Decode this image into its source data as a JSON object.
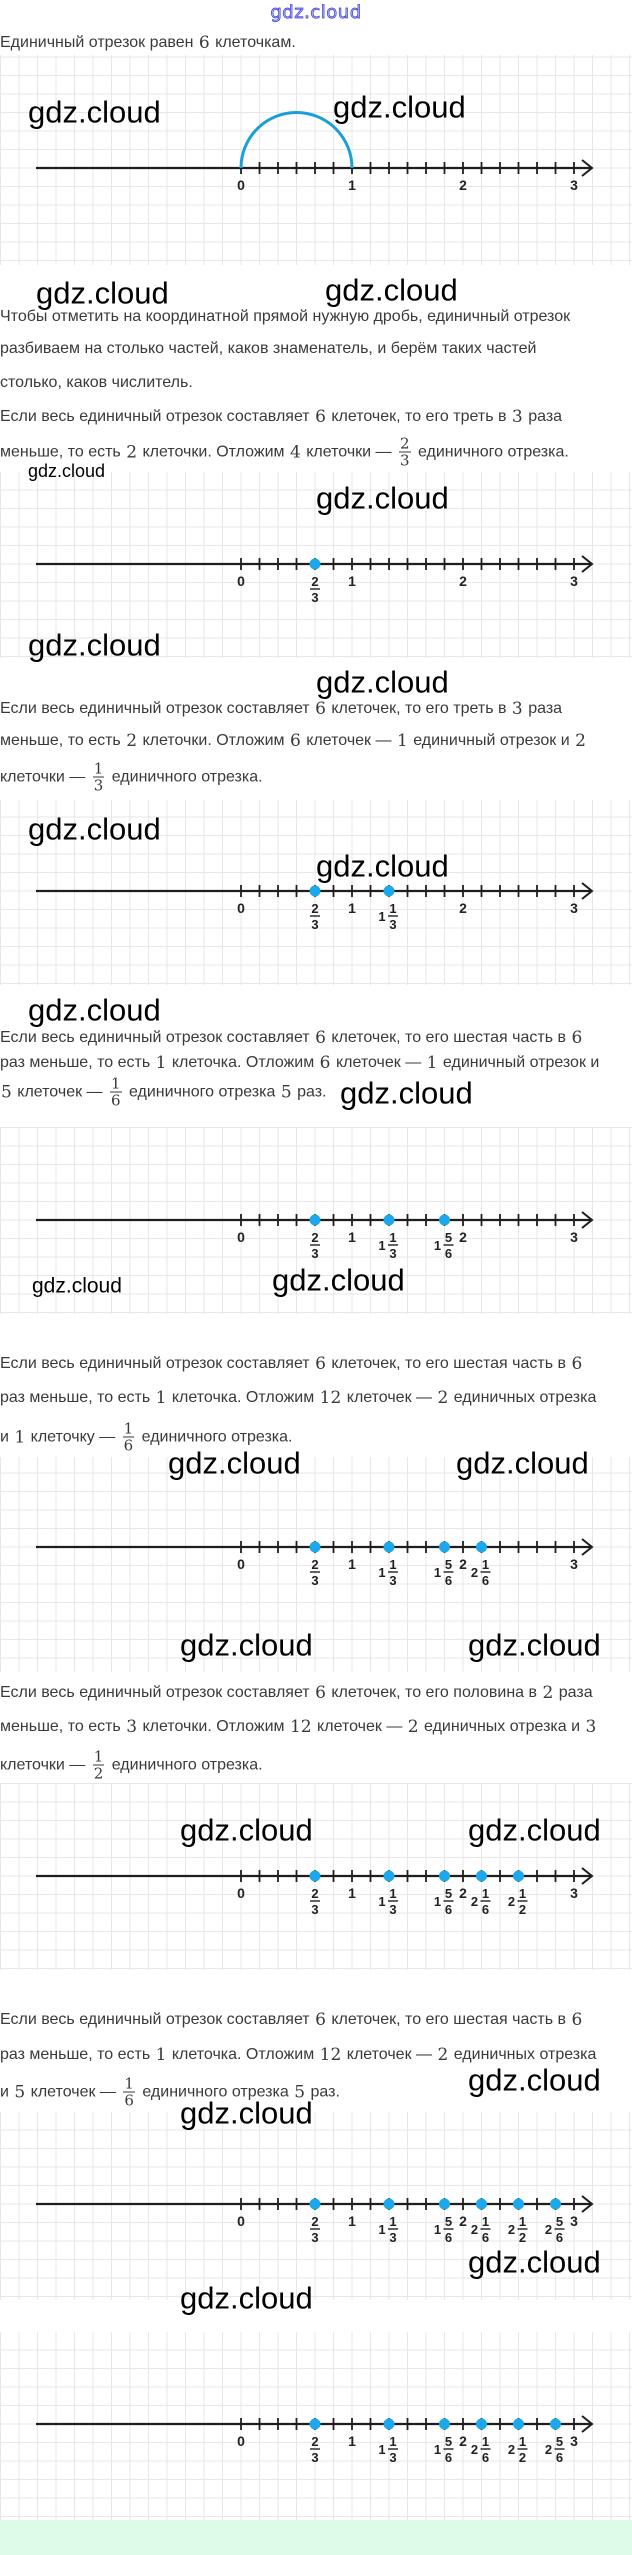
{
  "header": {
    "watermark": "gdz.cloud"
  },
  "watermark": "gdz.cloud",
  "paragraphs": [
    {
      "lines": [
        [
          {
            "t": "Единичный отрезок равен "
          },
          {
            "m": "6"
          },
          {
            "t": " клеточкам."
          }
        ]
      ]
    },
    {
      "lines": [
        [
          {
            "t": "Чтобы отметить на координатной прямой нужную дробь, единичный отрезок"
          }
        ],
        [
          {
            "t": "разбиваем на столько частей, каков знаменатель, и берём таких частей"
          }
        ],
        [
          {
            "t": "столько, каков числитель."
          }
        ],
        [
          {
            "t": "Если весь единичный отрезок составляет "
          },
          {
            "m": "6"
          },
          {
            "t": " клеточек, то его треть в "
          },
          {
            "m": "3"
          },
          {
            "t": " раза"
          }
        ],
        [
          {
            "t": "меньше, то есть "
          },
          {
            "m": "2"
          },
          {
            "t": " клеточки. Отложим "
          },
          {
            "m": "4"
          },
          {
            "t": " клеточки — "
          },
          {
            "f": [
              "2",
              "3"
            ]
          },
          {
            "t": " единичного отрезка."
          }
        ]
      ]
    },
    {
      "lines": [
        [
          {
            "t": "Если весь единичный отрезок составляет "
          },
          {
            "m": "6"
          },
          {
            "t": " клеточек, то его треть в "
          },
          {
            "m": "3"
          },
          {
            "t": " раза"
          }
        ],
        [
          {
            "t": "меньше, то есть "
          },
          {
            "m": "2"
          },
          {
            "t": " клеточки. Отложим "
          },
          {
            "m": "6"
          },
          {
            "t": " клеточек — "
          },
          {
            "m": "1"
          },
          {
            "t": " единичный отрезок и "
          },
          {
            "m": "2"
          }
        ],
        [
          {
            "t": "клеточки — "
          },
          {
            "f": [
              "1",
              "3"
            ]
          },
          {
            "t": " единичного отрезка."
          }
        ]
      ]
    },
    {
      "lines": [
        [
          {
            "t": "Если весь единичный отрезок составляет "
          },
          {
            "m": "6"
          },
          {
            "t": " клеточек, то его шестая часть в "
          },
          {
            "m": "6"
          }
        ],
        [
          {
            "t": "раз меньше, то есть "
          },
          {
            "m": "1"
          },
          {
            "t": " клеточка. Отложим "
          },
          {
            "m": "6"
          },
          {
            "t": " клеточек — "
          },
          {
            "m": "1"
          },
          {
            "t": " единичный отрезок и"
          }
        ],
        [
          {
            "m": "5"
          },
          {
            "t": " клеточек — "
          },
          {
            "f": [
              "1",
              "6"
            ]
          },
          {
            "t": " единичного отрезка "
          },
          {
            "m": "5"
          },
          {
            "t": " раз."
          }
        ]
      ]
    },
    {
      "lines": [
        [
          {
            "t": "Если весь единичный отрезок составляет "
          },
          {
            "m": "6"
          },
          {
            "t": " клеточек, то его шестая часть в "
          },
          {
            "m": "6"
          }
        ],
        [
          {
            "t": "раз меньше, то есть "
          },
          {
            "m": "1"
          },
          {
            "t": " клеточка. Отложим "
          },
          {
            "m": "12"
          },
          {
            "t": " клеточек — "
          },
          {
            "m": "2"
          },
          {
            "t": " единичных отрезка"
          }
        ],
        [
          {
            "t": "и "
          },
          {
            "m": "1"
          },
          {
            "t": " клеточку — "
          },
          {
            "f": [
              "1",
              "6"
            ]
          },
          {
            "t": " единичного отрезка."
          }
        ]
      ]
    },
    {
      "lines": [
        [
          {
            "t": "Если весь единичный отрезок составляет "
          },
          {
            "m": "6"
          },
          {
            "t": " клеточек, то его половина в "
          },
          {
            "m": "2"
          },
          {
            "t": " раза"
          }
        ],
        [
          {
            "t": "меньше, то есть "
          },
          {
            "m": "3"
          },
          {
            "t": " клеточки. Отложим "
          },
          {
            "m": "12"
          },
          {
            "t": " клеточек — "
          },
          {
            "m": "2"
          },
          {
            "t": " единичных отрезка и "
          },
          {
            "m": "3"
          }
        ],
        [
          {
            "t": "клеточки — "
          },
          {
            "f": [
              "1",
              "2"
            ]
          },
          {
            "t": " единичного отрезка."
          }
        ]
      ]
    },
    {
      "lines": [
        [
          {
            "t": "Если весь единичный отрезок составляет "
          },
          {
            "m": "6"
          },
          {
            "t": " клеточек, то его шестая часть в "
          },
          {
            "m": "6"
          }
        ],
        [
          {
            "t": "раз меньше, то есть "
          },
          {
            "m": "1"
          },
          {
            "t": " клеточка. Отложим "
          },
          {
            "m": "12"
          },
          {
            "t": " клеточек — "
          },
          {
            "m": "2"
          },
          {
            "t": " единичных отрезка"
          }
        ],
        [
          {
            "t": "и "
          },
          {
            "m": "5"
          },
          {
            "t": " клеточек — "
          },
          {
            "f": [
              "1",
              "6"
            ]
          },
          {
            "t": " единичного отрезка "
          },
          {
            "m": "5"
          },
          {
            "t": " раз."
          }
        ]
      ]
    }
  ],
  "number_lines": [
    {
      "range": [
        0,
        3
      ],
      "ticks_per_unit": 6,
      "integer_labels": [
        "0",
        "1",
        "2",
        "3"
      ],
      "arc": [
        0,
        1
      ],
      "points": []
    },
    {
      "range": [
        0,
        3
      ],
      "ticks_per_unit": 6,
      "integer_labels": [
        "0",
        "1",
        "2",
        "3"
      ],
      "points": [
        {
          "value": 0.6667,
          "whole": "",
          "num": "2",
          "den": "3"
        }
      ]
    },
    {
      "range": [
        0,
        3
      ],
      "ticks_per_unit": 6,
      "integer_labels": [
        "0",
        "1",
        "2",
        "3"
      ],
      "points": [
        {
          "value": 0.6667,
          "whole": "",
          "num": "2",
          "den": "3"
        },
        {
          "value": 1.3333,
          "whole": "1",
          "num": "1",
          "den": "3"
        }
      ]
    },
    {
      "range": [
        0,
        3
      ],
      "ticks_per_unit": 6,
      "integer_labels": [
        "0",
        "1",
        "2",
        "3"
      ],
      "points": [
        {
          "value": 0.6667,
          "whole": "",
          "num": "2",
          "den": "3"
        },
        {
          "value": 1.3333,
          "whole": "1",
          "num": "1",
          "den": "3"
        },
        {
          "value": 1.8333,
          "whole": "1",
          "num": "5",
          "den": "6"
        }
      ]
    },
    {
      "range": [
        0,
        3
      ],
      "ticks_per_unit": 6,
      "integer_labels": [
        "0",
        "1",
        "2",
        "3"
      ],
      "points": [
        {
          "value": 0.6667,
          "whole": "",
          "num": "2",
          "den": "3"
        },
        {
          "value": 1.3333,
          "whole": "1",
          "num": "1",
          "den": "3"
        },
        {
          "value": 1.8333,
          "whole": "1",
          "num": "5",
          "den": "6"
        },
        {
          "value": 2.1667,
          "whole": "2",
          "num": "1",
          "den": "6"
        }
      ]
    },
    {
      "range": [
        0,
        3
      ],
      "ticks_per_unit": 6,
      "integer_labels": [
        "0",
        "1",
        "2",
        "3"
      ],
      "points": [
        {
          "value": 0.6667,
          "whole": "",
          "num": "2",
          "den": "3"
        },
        {
          "value": 1.3333,
          "whole": "1",
          "num": "1",
          "den": "3"
        },
        {
          "value": 1.8333,
          "whole": "1",
          "num": "5",
          "den": "6"
        },
        {
          "value": 2.1667,
          "whole": "2",
          "num": "1",
          "den": "6"
        },
        {
          "value": 2.5,
          "whole": "2",
          "num": "1",
          "den": "2"
        }
      ]
    },
    {
      "range": [
        0,
        3
      ],
      "ticks_per_unit": 6,
      "integer_labels": [
        "0",
        "1",
        "2",
        "3"
      ],
      "points": [
        {
          "value": 0.6667,
          "whole": "",
          "num": "2",
          "den": "3"
        },
        {
          "value": 1.3333,
          "whole": "1",
          "num": "1",
          "den": "3"
        },
        {
          "value": 1.8333,
          "whole": "1",
          "num": "5",
          "den": "6"
        },
        {
          "value": 2.1667,
          "whole": "2",
          "num": "1",
          "den": "6"
        },
        {
          "value": 2.5,
          "whole": "2",
          "num": "1",
          "den": "2"
        },
        {
          "value": 2.8333,
          "whole": "2",
          "num": "5",
          "den": "6"
        }
      ]
    },
    {
      "range": [
        0,
        3
      ],
      "ticks_per_unit": 6,
      "integer_labels": [
        "0",
        "1",
        "2",
        "3"
      ],
      "points": [
        {
          "value": 0.6667,
          "whole": "",
          "num": "2",
          "den": "3"
        },
        {
          "value": 1.3333,
          "whole": "1",
          "num": "1",
          "den": "3"
        },
        {
          "value": 1.8333,
          "whole": "1",
          "num": "5",
          "den": "6"
        },
        {
          "value": 2.1667,
          "whole": "2",
          "num": "1",
          "den": "6"
        },
        {
          "value": 2.5,
          "whole": "2",
          "num": "1",
          "den": "2"
        },
        {
          "value": 2.8333,
          "whole": "2",
          "num": "5",
          "den": "6"
        }
      ]
    }
  ],
  "colors": {
    "point": "#1ca8ea",
    "arc": "#1a9fd6",
    "axis": "#1e1e1e",
    "grid": "#e7e7e7",
    "header_watermark": "#3b3bd6",
    "footer_band": "#dcfce7"
  }
}
